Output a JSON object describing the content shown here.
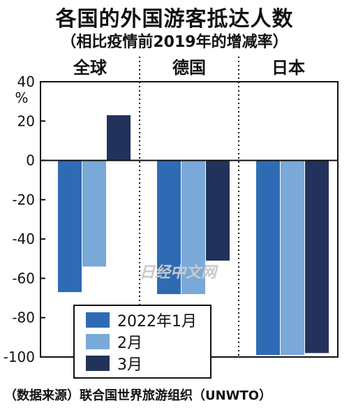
{
  "title": "各国的外国游客抵达人数",
  "subtitle": "（相比疫情前2019年的增减率）",
  "source": "（数据来源）联合国世界旅游组织（UNWTO）",
  "watermark": "日经中文网",
  "colors": {
    "s1": "#2f6bb5",
    "s2": "#7aa8d8",
    "s3": "#23325a",
    "axis": "#111111"
  },
  "chart_data": {
    "type": "bar",
    "categories": [
      "全球",
      "德国",
      "日本"
    ],
    "y_unit": "%",
    "ylim": [
      -100,
      40
    ],
    "yticks": [
      40,
      20,
      0,
      -20,
      -40,
      -60,
      -80,
      -100
    ],
    "ytick_labels": [
      "40",
      "20",
      "0",
      "-20",
      "-40",
      "-60",
      "-80",
      "-100"
    ],
    "legend_position": "bottom-left",
    "series": [
      {
        "name": "2022年1月",
        "values": [
          -67,
          -68,
          -99
        ]
      },
      {
        "name": "2月",
        "values": [
          -54,
          -68,
          -99
        ]
      },
      {
        "name": "3月",
        "values": [
          23,
          -51,
          -98
        ]
      }
    ]
  }
}
